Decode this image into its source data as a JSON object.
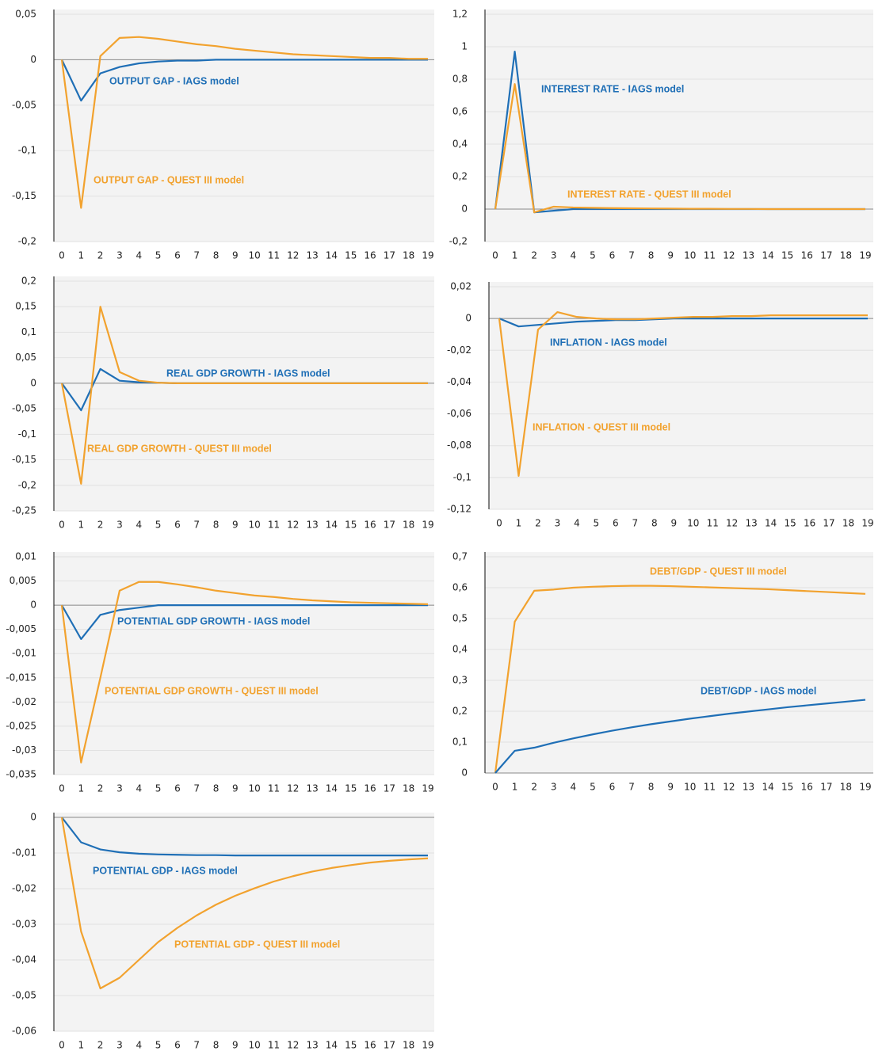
{
  "chart_data": [
    {
      "type": "line",
      "x": [
        0,
        1,
        2,
        3,
        4,
        5,
        6,
        7,
        8,
        9,
        10,
        11,
        12,
        13,
        14,
        15,
        16,
        17,
        18,
        19
      ],
      "xlim": [
        0,
        19
      ],
      "xticks": [
        0,
        1,
        2,
        3,
        4,
        5,
        6,
        7,
        8,
        9,
        10,
        11,
        12,
        13,
        14,
        15,
        16,
        17,
        18,
        19
      ],
      "ylim": [
        -0.2,
        0.05
      ],
      "yticks": [
        {
          "value": -0.2,
          "label": "-0,2"
        },
        {
          "value": -0.15,
          "label": "-0,15"
        },
        {
          "value": -0.1,
          "label": "-0,1"
        },
        {
          "value": -0.05,
          "label": "-0,05"
        },
        0,
        {
          "value": 0.05,
          "label": "0,05"
        }
      ],
      "grid": true,
      "series": [
        {
          "name": "OUTPUT GAP - IAGS model",
          "color": "#1f6fb6",
          "values": [
            0,
            -0.045,
            -0.015,
            -0.008,
            -0.004,
            -0.002,
            -0.001,
            -0.001,
            0,
            0,
            0,
            0,
            0,
            0,
            0,
            0,
            0,
            0,
            0,
            0
          ]
        },
        {
          "name": "OUTPUT GAP - QUEST III model",
          "color": "#f2a22e",
          "values": [
            0,
            -0.163,
            0.004,
            0.024,
            0.025,
            0.023,
            0.02,
            0.017,
            0.015,
            0.012,
            0.01,
            0.008,
            0.006,
            0.005,
            0.004,
            0.003,
            0.002,
            0.002,
            0.001,
            0.001
          ]
        }
      ]
    },
    {
      "type": "line",
      "x": [
        0,
        1,
        2,
        3,
        4,
        5,
        6,
        7,
        8,
        9,
        10,
        11,
        12,
        13,
        14,
        15,
        16,
        17,
        18,
        19
      ],
      "xlim": [
        0,
        19
      ],
      "xticks": [
        0,
        1,
        2,
        3,
        4,
        5,
        6,
        7,
        8,
        9,
        10,
        11,
        12,
        13,
        14,
        15,
        16,
        17,
        18,
        19
      ],
      "ylim": [
        -0.2,
        1.2
      ],
      "yticks": [
        {
          "value": -0.2,
          "label": "-0,2"
        },
        0,
        {
          "value": 0.2,
          "label": "0,2"
        },
        {
          "value": 0.4,
          "label": "0,4"
        },
        {
          "value": 0.6,
          "label": "0,6"
        },
        {
          "value": 0.8,
          "label": "0,8"
        },
        1,
        {
          "value": 1.2,
          "label": "1,2"
        }
      ],
      "grid": true,
      "series": [
        {
          "name": "INTEREST RATE - IAGS model",
          "color": "#1f6fb6",
          "values": [
            0,
            0.97,
            -0.02,
            -0.01,
            0,
            0,
            0,
            0,
            0,
            0,
            0,
            0,
            0,
            0,
            0,
            0,
            0,
            0,
            0,
            0
          ]
        },
        {
          "name": "INTEREST RATE - QUEST III model",
          "color": "#f2a22e",
          "values": [
            0,
            0.77,
            -0.02,
            0.015,
            0.01,
            0.008,
            0.006,
            0.005,
            0.004,
            0.003,
            0.002,
            0.002,
            0.001,
            0.001,
            0,
            0,
            0,
            0,
            0,
            0
          ]
        }
      ]
    },
    {
      "type": "line",
      "x": [
        0,
        1,
        2,
        3,
        4,
        5,
        6,
        7,
        8,
        9,
        10,
        11,
        12,
        13,
        14,
        15,
        16,
        17,
        18,
        19
      ],
      "xlim": [
        0,
        19
      ],
      "xticks": [
        0,
        1,
        2,
        3,
        4,
        5,
        6,
        7,
        8,
        9,
        10,
        11,
        12,
        13,
        14,
        15,
        16,
        17,
        18,
        19
      ],
      "ylim": [
        -0.25,
        0.2
      ],
      "yticks": [
        {
          "value": -0.25,
          "label": "-0,25"
        },
        {
          "value": -0.2,
          "label": "-0,2"
        },
        {
          "value": -0.15,
          "label": "-0,15"
        },
        {
          "value": -0.1,
          "label": "-0,1"
        },
        {
          "value": -0.05,
          "label": "-0,05"
        },
        0,
        {
          "value": 0.05,
          "label": "0,05"
        },
        {
          "value": 0.1,
          "label": "0,1"
        },
        {
          "value": 0.15,
          "label": "0,15"
        },
        {
          "value": 0.2,
          "label": "0,2"
        }
      ],
      "grid": true,
      "series": [
        {
          "name": "REAL GDP GROWTH - IAGS model",
          "color": "#1f6fb6",
          "values": [
            0,
            -0.053,
            0.028,
            0.005,
            0.002,
            0.001,
            0,
            0,
            0,
            0,
            0,
            0,
            0,
            0,
            0,
            0,
            0,
            0,
            0,
            0
          ]
        },
        {
          "name": "REAL GDP GROWTH - QUEST III model",
          "color": "#f2a22e",
          "values": [
            0,
            -0.197,
            0.15,
            0.022,
            0.005,
            0.001,
            0,
            0,
            0,
            0,
            0,
            0,
            0,
            0,
            0,
            0,
            0,
            0,
            0,
            0
          ]
        }
      ]
    },
    {
      "type": "line",
      "x": [
        0,
        1,
        2,
        3,
        4,
        5,
        6,
        7,
        8,
        9,
        10,
        11,
        12,
        13,
        14,
        15,
        16,
        17,
        18,
        19
      ],
      "xlim": [
        0,
        19
      ],
      "xticks": [
        0,
        1,
        2,
        3,
        4,
        5,
        6,
        7,
        8,
        9,
        10,
        11,
        12,
        13,
        14,
        15,
        16,
        17,
        18,
        19
      ],
      "ylim": [
        -0.12,
        0.02
      ],
      "yticks": [
        {
          "value": -0.12,
          "label": "-0,12"
        },
        {
          "value": -0.1,
          "label": "-0,1"
        },
        {
          "value": -0.08,
          "label": "-0,08"
        },
        {
          "value": -0.06,
          "label": "-0,06"
        },
        {
          "value": -0.04,
          "label": "-0,04"
        },
        {
          "value": -0.02,
          "label": "-0,02"
        },
        0,
        {
          "value": 0.02,
          "label": "0,02"
        }
      ],
      "grid": true,
      "series": [
        {
          "name": "INFLATION - IAGS model",
          "color": "#1f6fb6",
          "values": [
            0,
            -0.005,
            -0.004,
            -0.003,
            -0.002,
            -0.0015,
            -0.001,
            -0.001,
            -0.0005,
            0,
            0,
            0,
            0,
            0,
            0,
            0,
            0,
            0,
            0,
            0
          ]
        },
        {
          "name": "INFLATION - QUEST III model",
          "color": "#f2a22e",
          "values": [
            0,
            -0.099,
            -0.007,
            0.004,
            0.001,
            0,
            -0.0005,
            -0.0005,
            0,
            0.0005,
            0.001,
            0.001,
            0.0015,
            0.0015,
            0.002,
            0.002,
            0.002,
            0.002,
            0.002,
            0.002
          ]
        }
      ]
    },
    {
      "type": "line",
      "x": [
        0,
        1,
        2,
        3,
        4,
        5,
        6,
        7,
        8,
        9,
        10,
        11,
        12,
        13,
        14,
        15,
        16,
        17,
        18,
        19
      ],
      "xlim": [
        0,
        19
      ],
      "xticks": [
        0,
        1,
        2,
        3,
        4,
        5,
        6,
        7,
        8,
        9,
        10,
        11,
        12,
        13,
        14,
        15,
        16,
        17,
        18,
        19
      ],
      "ylim": [
        -0.035,
        0.01
      ],
      "yticks": [
        {
          "value": -0.035,
          "label": "-0,035"
        },
        {
          "value": -0.03,
          "label": "-0,03"
        },
        {
          "value": -0.025,
          "label": "-0,025"
        },
        {
          "value": -0.02,
          "label": "-0,02"
        },
        {
          "value": -0.015,
          "label": "-0,015"
        },
        {
          "value": -0.01,
          "label": "-0,01"
        },
        {
          "value": -0.005,
          "label": "-0,005"
        },
        0,
        {
          "value": 0.005,
          "label": "0,005"
        },
        {
          "value": 0.01,
          "label": "0,01"
        }
      ],
      "grid": true,
      "series": [
        {
          "name": "POTENTIAL GDP GROWTH - IAGS model",
          "color": "#1f6fb6",
          "values": [
            0,
            -0.007,
            -0.002,
            -0.001,
            -0.0005,
            0,
            0,
            0,
            0,
            0,
            0,
            0,
            0,
            0,
            0,
            0,
            0,
            0,
            0,
            0
          ]
        },
        {
          "name": "POTENTIAL GDP GROWTH - QUEST III model",
          "color": "#f2a22e",
          "values": [
            0,
            -0.0325,
            -0.015,
            0.003,
            0.0048,
            0.0048,
            0.0043,
            0.0037,
            0.003,
            0.0025,
            0.002,
            0.0017,
            0.0013,
            0.001,
            0.0008,
            0.0006,
            0.0005,
            0.0004,
            0.0003,
            0.0002
          ]
        }
      ]
    },
    {
      "type": "line",
      "x": [
        0,
        1,
        2,
        3,
        4,
        5,
        6,
        7,
        8,
        9,
        10,
        11,
        12,
        13,
        14,
        15,
        16,
        17,
        18,
        19
      ],
      "xlim": [
        0,
        19
      ],
      "xticks": [
        0,
        1,
        2,
        3,
        4,
        5,
        6,
        7,
        8,
        9,
        10,
        11,
        12,
        13,
        14,
        15,
        16,
        17,
        18,
        19
      ],
      "ylim": [
        0,
        0.7
      ],
      "yticks": [
        0,
        {
          "value": 0.1,
          "label": "0,1"
        },
        {
          "value": 0.2,
          "label": "0,2"
        },
        {
          "value": 0.3,
          "label": "0,3"
        },
        {
          "value": 0.4,
          "label": "0,4"
        },
        {
          "value": 0.5,
          "label": "0,5"
        },
        {
          "value": 0.6,
          "label": "0,6"
        },
        {
          "value": 0.7,
          "label": "0,7"
        }
      ],
      "grid": true,
      "series": [
        {
          "name": "DEBT/GDP - QUEST III model",
          "color": "#f2a22e",
          "values": [
            0,
            0.49,
            0.59,
            0.594,
            0.6,
            0.603,
            0.605,
            0.606,
            0.606,
            0.605,
            0.603,
            0.601,
            0.599,
            0.597,
            0.595,
            0.592,
            0.589,
            0.586,
            0.583,
            0.58
          ]
        },
        {
          "name": "DEBT/GDP - IAGS model",
          "color": "#1f6fb6",
          "values": [
            0,
            0.072,
            0.082,
            0.098,
            0.112,
            0.125,
            0.137,
            0.148,
            0.158,
            0.167,
            0.176,
            0.184,
            0.192,
            0.199,
            0.206,
            0.213,
            0.219,
            0.225,
            0.231,
            0.237
          ]
        }
      ]
    },
    {
      "type": "line",
      "x": [
        0,
        1,
        2,
        3,
        4,
        5,
        6,
        7,
        8,
        9,
        10,
        11,
        12,
        13,
        14,
        15,
        16,
        17,
        18,
        19
      ],
      "xlim": [
        0,
        19
      ],
      "xticks": [
        0,
        1,
        2,
        3,
        4,
        5,
        6,
        7,
        8,
        9,
        10,
        11,
        12,
        13,
        14,
        15,
        16,
        17,
        18,
        19
      ],
      "ylim": [
        -0.06,
        0
      ],
      "yticks": [
        {
          "value": -0.06,
          "label": "-0,06"
        },
        {
          "value": -0.05,
          "label": "-0,05"
        },
        {
          "value": -0.04,
          "label": "-0,04"
        },
        {
          "value": -0.03,
          "label": "-0,03"
        },
        {
          "value": -0.02,
          "label": "-0,02"
        },
        {
          "value": -0.01,
          "label": "-0,01"
        },
        0
      ],
      "grid": true,
      "series": [
        {
          "name": "POTENTIAL GDP - IAGS model",
          "color": "#1f6fb6",
          "values": [
            0,
            -0.007,
            -0.009,
            -0.0098,
            -0.0102,
            -0.0104,
            -0.0105,
            -0.0106,
            -0.0106,
            -0.0107,
            -0.0107,
            -0.0107,
            -0.0107,
            -0.0107,
            -0.0107,
            -0.0107,
            -0.0107,
            -0.0107,
            -0.0107,
            -0.0107
          ]
        },
        {
          "name": "POTENTIAL GDP - QUEST III model",
          "color": "#f2a22e",
          "values": [
            0,
            -0.032,
            -0.048,
            -0.045,
            -0.04,
            -0.035,
            -0.031,
            -0.0275,
            -0.0245,
            -0.022,
            -0.0199,
            -0.018,
            -0.0165,
            -0.0152,
            -0.0142,
            -0.0134,
            -0.0127,
            -0.0122,
            -0.0118,
            -0.0115
          ]
        }
      ]
    }
  ]
}
